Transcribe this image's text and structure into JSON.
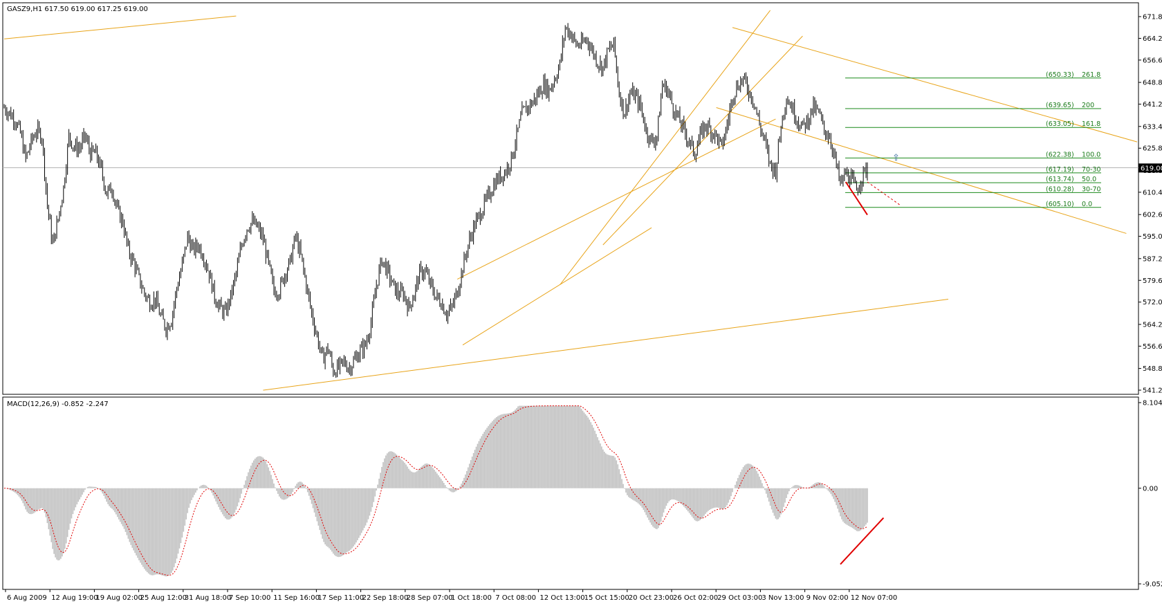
{
  "window": {
    "symbol_line": "GASZ9,H1  617.50 619.00 617.25 619.00",
    "current_price_label": "619.00"
  },
  "colors": {
    "background": "#ffffff",
    "candles": "#000000",
    "trendlines": "#e8a317",
    "fibonacci": "#1a8a1a",
    "macd_histogram": "#c0c0c0",
    "macd_signal": "#e00000",
    "divergence": "#e00000",
    "grid_border": "#000000",
    "current_price_line": "#b0b0b0"
  },
  "chart_data": [
    {
      "type": "candlestick",
      "title": "GASZ9,H1  617.50 619.00 617.25 619.00",
      "ylim": [
        541.21,
        671.8
      ],
      "y_ticks": [
        "671.80",
        "664.20",
        "656.60",
        "648.80",
        "641.20",
        "633.40",
        "625.80",
        "618.00",
        "610.40",
        "602.60",
        "595.00",
        "587.20",
        "579.60",
        "572.00",
        "564.20",
        "556.60",
        "548.80",
        "541.21"
      ],
      "current_price": 619.0,
      "x_ticks": [
        "6 Aug 2009",
        "12 Aug 19:00",
        "19 Aug 02:00",
        "25 Aug 12:00",
        "31 Aug 18:00",
        "7 Sep 10:00",
        "11 Sep 16:00",
        "17 Sep 11:00",
        "22 Sep 18:00",
        "28 Sep 07:00",
        "1 Oct 18:00",
        "7 Oct 08:00",
        "12 Oct 13:00",
        "15 Oct 15:00",
        "20 Oct 23:00",
        "26 Oct 02:00",
        "29 Oct 03:00",
        "3 Nov 13:00",
        "9 Nov 02:00",
        "12 Nov 07:00"
      ],
      "price_path": [
        [
          0,
          640
        ],
        [
          2,
          636
        ],
        [
          3,
          631
        ],
        [
          4,
          622
        ],
        [
          5,
          628
        ],
        [
          6,
          632
        ],
        [
          7,
          630
        ],
        [
          8,
          606
        ],
        [
          9,
          592
        ],
        [
          10,
          601
        ],
        [
          11,
          612
        ],
        [
          12,
          630
        ],
        [
          13,
          626
        ],
        [
          14,
          626
        ],
        [
          15,
          630
        ],
        [
          16,
          624
        ],
        [
          17,
          624
        ],
        [
          18,
          618
        ],
        [
          19,
          610
        ],
        [
          20,
          612
        ],
        [
          21,
          604
        ],
        [
          22,
          600
        ],
        [
          23,
          590
        ],
        [
          24,
          586
        ],
        [
          25,
          580
        ],
        [
          26,
          575
        ],
        [
          27,
          572
        ],
        [
          28,
          573
        ],
        [
          29,
          567
        ],
        [
          30,
          563
        ],
        [
          31,
          566
        ],
        [
          32,
          577
        ],
        [
          33,
          585
        ],
        [
          34,
          595
        ],
        [
          35,
          590
        ],
        [
          36,
          592
        ],
        [
          37,
          588
        ],
        [
          38,
          582
        ],
        [
          39,
          574
        ],
        [
          40,
          570
        ],
        [
          41,
          568
        ],
        [
          42,
          574
        ],
        [
          43,
          582
        ],
        [
          44,
          592
        ],
        [
          45,
          598
        ],
        [
          46,
          600
        ],
        [
          47,
          598
        ],
        [
          48,
          594
        ],
        [
          49,
          585
        ],
        [
          50,
          576
        ],
        [
          51,
          576
        ],
        [
          52,
          582
        ],
        [
          53,
          586
        ],
        [
          54,
          595
        ],
        [
          55,
          588
        ],
        [
          56,
          578
        ],
        [
          57,
          568
        ],
        [
          58,
          560
        ],
        [
          59,
          552
        ],
        [
          60,
          556
        ],
        [
          61,
          548
        ],
        [
          62,
          549
        ],
        [
          63,
          551
        ],
        [
          64,
          549
        ],
        [
          65,
          552
        ],
        [
          66,
          555
        ],
        [
          67,
          557
        ],
        [
          68,
          565
        ],
        [
          69,
          578
        ],
        [
          70,
          587
        ],
        [
          71,
          583
        ],
        [
          72,
          578
        ],
        [
          73,
          575
        ],
        [
          74,
          575
        ],
        [
          75,
          570
        ],
        [
          76,
          575
        ],
        [
          77,
          582
        ],
        [
          78,
          583
        ],
        [
          79,
          578
        ],
        [
          80,
          574
        ],
        [
          81,
          572
        ],
        [
          82,
          568
        ],
        [
          83,
          570
        ],
        [
          84,
          576
        ],
        [
          85,
          584
        ],
        [
          86,
          592
        ],
        [
          87,
          598
        ],
        [
          88,
          602
        ],
        [
          89,
          606
        ],
        [
          90,
          610
        ],
        [
          91,
          614
        ],
        [
          92,
          616
        ],
        [
          93,
          618
        ],
        [
          94,
          622
        ],
        [
          95,
          630
        ],
        [
          96,
          638
        ],
        [
          97,
          640
        ],
        [
          98,
          642
        ],
        [
          99,
          645
        ],
        [
          100,
          648
        ],
        [
          101,
          646
        ],
        [
          102,
          650
        ],
        [
          103,
          655
        ],
        [
          104,
          668
        ],
        [
          105,
          666
        ],
        [
          106,
          662
        ],
        [
          107,
          662
        ],
        [
          108,
          664
        ],
        [
          109,
          660
        ],
        [
          110,
          656
        ],
        [
          111,
          654
        ],
        [
          112,
          660
        ],
        [
          113,
          662
        ],
        [
          114,
          645
        ],
        [
          115,
          638
        ],
        [
          116,
          645
        ],
        [
          117,
          644
        ],
        [
          118,
          640
        ],
        [
          119,
          632
        ],
        [
          120,
          628
        ],
        [
          121,
          630
        ],
        [
          122,
          648
        ],
        [
          123,
          646
        ],
        [
          124,
          640
        ],
        [
          125,
          636
        ],
        [
          126,
          632
        ],
        [
          127,
          628
        ],
        [
          128,
          624
        ],
        [
          129,
          630
        ],
        [
          130,
          634
        ],
        [
          131,
          632
        ],
        [
          132,
          630
        ],
        [
          133,
          626
        ],
        [
          134,
          634
        ],
        [
          135,
          644
        ],
        [
          136,
          648
        ],
        [
          137,
          650
        ],
        [
          138,
          646
        ],
        [
          139,
          642
        ],
        [
          140,
          634
        ],
        [
          141,
          628
        ],
        [
          142,
          620
        ],
        [
          143,
          618
        ],
        [
          144,
          634
        ],
        [
          145,
          644
        ],
        [
          146,
          640
        ],
        [
          147,
          636
        ],
        [
          148,
          633
        ],
        [
          149,
          636
        ],
        [
          150,
          640
        ],
        [
          151,
          638
        ],
        [
          152,
          632
        ],
        [
          153,
          630
        ],
        [
          154,
          622
        ],
        [
          155,
          613
        ],
        [
          156,
          617
        ],
        [
          157,
          615
        ],
        [
          158,
          611
        ],
        [
          159,
          616
        ],
        [
          160,
          619
        ]
      ],
      "trendlines": [
        {
          "from": [
            0,
            664
          ],
          "to": [
            43,
            672
          ]
        },
        {
          "from": [
            48,
            541.2
          ],
          "to": [
            175,
            573
          ]
        },
        {
          "from": [
            84,
            580
          ],
          "to": [
            143,
            636
          ]
        },
        {
          "from": [
            85,
            557
          ],
          "to": [
            120,
            598
          ]
        },
        {
          "from": [
            103,
            578
          ],
          "to": [
            142,
            674
          ]
        },
        {
          "from": [
            111,
            592
          ],
          "to": [
            148,
            665
          ]
        },
        {
          "from": [
            135,
            668
          ],
          "to": [
            210,
            628
          ]
        },
        {
          "from": [
            132,
            640
          ],
          "to": [
            208,
            596
          ]
        }
      ],
      "fibonacci": {
        "levels": [
          {
            "price": 650.33,
            "label": "(650.33)",
            "ratio": "261.8"
          },
          {
            "price": 639.65,
            "label": "(639.65)",
            "ratio": "200"
          },
          {
            "price": 633.05,
            "label": "(633.05)",
            "ratio": "161.8"
          },
          {
            "price": 622.38,
            "label": "(622.38)",
            "ratio": "100.0"
          },
          {
            "price": 617.19,
            "label": "(617.19)",
            "ratio": "70-30"
          },
          {
            "price": 613.74,
            "label": "(613.74)",
            "ratio": "50.0"
          },
          {
            "price": 610.28,
            "label": "(610.28)",
            "ratio": "30-70"
          },
          {
            "price": 605.1,
            "label": "(605.10)",
            "ratio": "0.0"
          }
        ]
      }
    },
    {
      "type": "area",
      "title": "MACD(12,26,9) -0.852 -2.247",
      "ylim": [
        -9.052,
        8.104
      ],
      "y_ticks": [
        "8.104",
        "0.00",
        "-9.052"
      ],
      "main": -0.852,
      "signal": -2.247
    }
  ]
}
